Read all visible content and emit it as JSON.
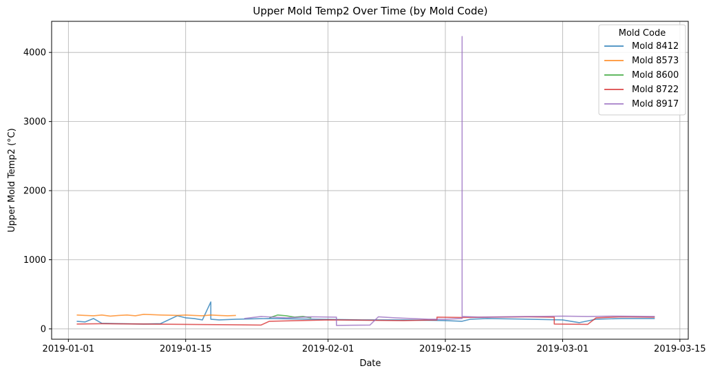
{
  "chart_data": {
    "type": "line",
    "title": "Upper Mold Temp2 Over Time (by Mold Code)",
    "xlabel": "Date",
    "ylabel": "Upper Mold Temp2 (°C)",
    "x_ticks": [
      "2019-01-01",
      "2019-01-15",
      "2019-02-01",
      "2019-02-15",
      "2019-03-01",
      "2019-03-15"
    ],
    "y_ticks": [
      "0",
      "1000",
      "2000",
      "3000",
      "4000"
    ],
    "ylim": [
      -150,
      4450
    ],
    "xlim": [
      "2018-12-30",
      "2019-03-16"
    ],
    "grid": true,
    "legend": {
      "title": "Mold Code",
      "placement": "top-right"
    },
    "series": [
      {
        "name": "Mold 8412",
        "color": "#1f77b4",
        "points": [
          [
            "2019-01-02",
            110
          ],
          [
            "2019-01-03",
            100
          ],
          [
            "2019-01-04",
            150
          ],
          [
            "2019-01-05",
            80
          ],
          [
            "2019-01-07",
            75
          ],
          [
            "2019-01-10",
            70
          ],
          [
            "2019-01-12",
            75
          ],
          [
            "2019-01-14",
            190
          ],
          [
            "2019-01-15",
            160
          ],
          [
            "2019-01-16",
            150
          ],
          [
            "2019-01-17",
            130
          ],
          [
            "2019-01-18",
            390
          ],
          [
            "2019-01-18",
            140
          ],
          [
            "2019-01-19",
            130
          ],
          [
            "2019-01-21",
            140
          ],
          [
            "2019-01-25",
            150
          ],
          [
            "2019-02-05",
            130
          ],
          [
            "2019-02-10",
            130
          ],
          [
            "2019-02-15",
            120
          ],
          [
            "2019-02-17",
            110
          ],
          [
            "2019-02-18",
            140
          ],
          [
            "2019-02-20",
            150
          ],
          [
            "2019-02-25",
            140
          ],
          [
            "2019-03-01",
            130
          ],
          [
            "2019-03-03",
            90
          ],
          [
            "2019-03-05",
            140
          ],
          [
            "2019-03-08",
            150
          ],
          [
            "2019-03-12",
            150
          ]
        ]
      },
      {
        "name": "Mold 8573",
        "color": "#ff7f0e",
        "points": [
          [
            "2019-01-02",
            200
          ],
          [
            "2019-01-03",
            195
          ],
          [
            "2019-01-04",
            190
          ],
          [
            "2019-01-05",
            200
          ],
          [
            "2019-01-06",
            185
          ],
          [
            "2019-01-07",
            195
          ],
          [
            "2019-01-08",
            200
          ],
          [
            "2019-01-09",
            190
          ],
          [
            "2019-01-10",
            210
          ],
          [
            "2019-01-11",
            205
          ],
          [
            "2019-01-12",
            200
          ],
          [
            "2019-01-14",
            195
          ],
          [
            "2019-01-15",
            200
          ],
          [
            "2019-01-16",
            195
          ],
          [
            "2019-01-17",
            190
          ],
          [
            "2019-01-18",
            200
          ],
          [
            "2019-01-19",
            195
          ],
          [
            "2019-01-20",
            190
          ],
          [
            "2019-01-21",
            195
          ]
        ]
      },
      {
        "name": "Mold 8600",
        "color": "#2ca02c",
        "points": [
          [
            "2019-01-25",
            160
          ],
          [
            "2019-01-26",
            200
          ],
          [
            "2019-01-27",
            190
          ],
          [
            "2019-01-28",
            170
          ],
          [
            "2019-01-29",
            180
          ],
          [
            "2019-01-30",
            160
          ]
        ]
      },
      {
        "name": "Mold 8722",
        "color": "#d62728",
        "points": [
          [
            "2019-01-02",
            70
          ],
          [
            "2019-01-05",
            75
          ],
          [
            "2019-01-10",
            70
          ],
          [
            "2019-01-15",
            65
          ],
          [
            "2019-01-20",
            60
          ],
          [
            "2019-01-24",
            55
          ],
          [
            "2019-01-25",
            110
          ],
          [
            "2019-02-01",
            130
          ],
          [
            "2019-02-10",
            120
          ],
          [
            "2019-02-14",
            130
          ],
          [
            "2019-02-14",
            170
          ],
          [
            "2019-02-17",
            165
          ],
          [
            "2019-02-20",
            170
          ],
          [
            "2019-02-25",
            175
          ],
          [
            "2019-02-28",
            170
          ],
          [
            "2019-02-28",
            70
          ],
          [
            "2019-03-04",
            65
          ],
          [
            "2019-03-05",
            160
          ],
          [
            "2019-03-08",
            175
          ],
          [
            "2019-03-12",
            170
          ]
        ]
      },
      {
        "name": "Mold 8917",
        "color": "#9467bd",
        "points": [
          [
            "2019-01-22",
            150
          ],
          [
            "2019-01-24",
            180
          ],
          [
            "2019-01-27",
            160
          ],
          [
            "2019-01-30",
            175
          ],
          [
            "2019-02-02",
            170
          ],
          [
            "2019-02-02",
            50
          ],
          [
            "2019-02-06",
            55
          ],
          [
            "2019-02-07",
            175
          ],
          [
            "2019-02-09",
            160
          ],
          [
            "2019-02-11",
            150
          ],
          [
            "2019-02-13",
            140
          ],
          [
            "2019-02-15",
            140
          ],
          [
            "2019-02-17",
            150
          ],
          [
            "2019-02-17",
            4230
          ],
          [
            "2019-02-17",
            180
          ],
          [
            "2019-02-19",
            170
          ],
          [
            "2019-02-22",
            175
          ],
          [
            "2019-02-26",
            180
          ],
          [
            "2019-03-01",
            185
          ],
          [
            "2019-03-04",
            180
          ],
          [
            "2019-03-07",
            185
          ],
          [
            "2019-03-12",
            180
          ]
        ]
      }
    ]
  }
}
